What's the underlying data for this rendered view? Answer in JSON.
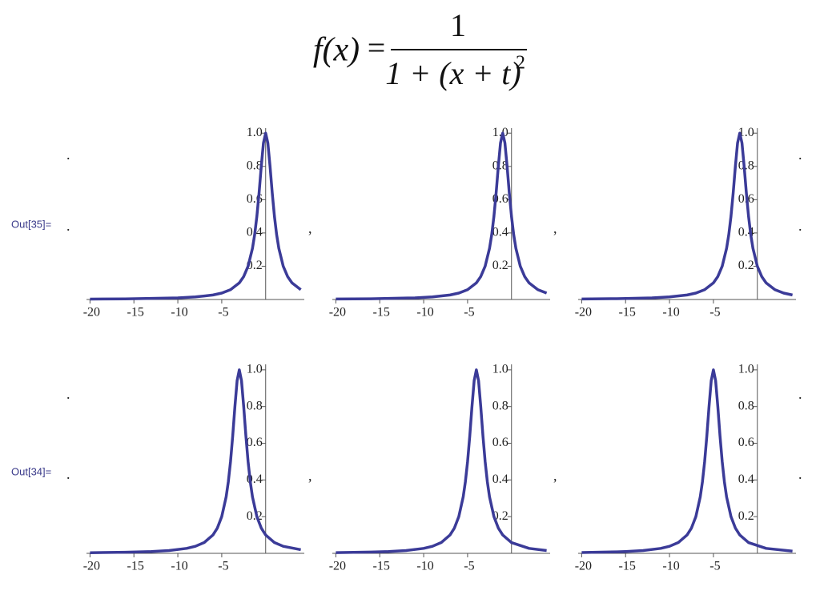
{
  "formula": {
    "lhs": "f(x)",
    "equals": "=",
    "numerator": "1",
    "denominator": "1 + (x + t)",
    "exponent": "2"
  },
  "outputs": [
    {
      "label": "Out[35]="
    },
    {
      "label": "Out[34]="
    }
  ],
  "separator": ",",
  "dot": ".",
  "chart_data": [
    {
      "type": "line",
      "color": "#3b3b98",
      "xlim": [
        -20.4,
        4.4
      ],
      "ylim": [
        0,
        1.03
      ],
      "xticks": [
        -20,
        -15,
        -10,
        -5
      ],
      "yticks": [
        0.2,
        0.4,
        0.6,
        0.8,
        {
          "value": 1,
          "label": "1.0"
        }
      ],
      "x": [
        -20,
        -16,
        -10,
        -8,
        -6,
        -5,
        -4,
        -3,
        -2.5,
        -2,
        -1.5,
        -1.25,
        -1,
        -0.75,
        -0.5,
        -0.25,
        0,
        0.25,
        0.5,
        0.75,
        1,
        1.25,
        1.5,
        2,
        2.5,
        3,
        4
      ],
      "values": [
        0.0025,
        0.0039,
        0.0099,
        0.0154,
        0.027,
        0.0385,
        0.0588,
        0.1,
        0.1379,
        0.2,
        0.3077,
        0.3902,
        0.5,
        0.64,
        0.8,
        0.9412,
        1,
        0.9412,
        0.8,
        0.64,
        0.5,
        0.3902,
        0.3077,
        0.2,
        0.1379,
        0.1,
        0.0588
      ]
    },
    {
      "type": "line",
      "color": "#3b3b98",
      "xlim": [
        -20.4,
        4.4
      ],
      "ylim": [
        0,
        1.03
      ],
      "xticks": [
        -20,
        -15,
        -10,
        -5
      ],
      "yticks": [
        0.2,
        0.4,
        0.6,
        0.8,
        {
          "value": 1,
          "label": "1.0"
        }
      ],
      "x": [
        -20,
        -16,
        -11,
        -9,
        -7,
        -6,
        -5,
        -4,
        -3.5,
        -3,
        -2.5,
        -2.25,
        -2,
        -1.75,
        -1.5,
        -1.25,
        -1,
        -0.75,
        -0.5,
        -0.25,
        0,
        0.25,
        0.5,
        1,
        1.5,
        2,
        3,
        4
      ],
      "values": [
        0.0028,
        0.0044,
        0.0099,
        0.0154,
        0.027,
        0.0385,
        0.0588,
        0.1,
        0.1379,
        0.2,
        0.3077,
        0.3902,
        0.5,
        0.64,
        0.8,
        0.9412,
        1,
        0.9412,
        0.8,
        0.64,
        0.5,
        0.3902,
        0.3077,
        0.2,
        0.1379,
        0.1,
        0.0588,
        0.0385
      ]
    },
    {
      "type": "line",
      "color": "#3b3b98",
      "xlim": [
        -20.4,
        4.4
      ],
      "ylim": [
        0,
        1.03
      ],
      "xticks": [
        -20,
        -15,
        -10,
        -5
      ],
      "yticks": [
        0.2,
        0.4,
        0.6,
        0.8,
        {
          "value": 1,
          "label": "1.0"
        }
      ],
      "x": [
        -20,
        -16,
        -12,
        -10,
        -8,
        -7,
        -6,
        -5,
        -4.5,
        -4,
        -3.5,
        -3.25,
        -3,
        -2.75,
        -2.5,
        -2.25,
        -2,
        -1.75,
        -1.5,
        -1.25,
        -1,
        -0.75,
        -0.5,
        0,
        0.5,
        1,
        2,
        3,
        4
      ],
      "values": [
        0.0031,
        0.0051,
        0.0099,
        0.0154,
        0.027,
        0.0385,
        0.0588,
        0.1,
        0.1379,
        0.2,
        0.3077,
        0.3902,
        0.5,
        0.64,
        0.8,
        0.9412,
        1,
        0.9412,
        0.8,
        0.64,
        0.5,
        0.3902,
        0.3077,
        0.2,
        0.1379,
        0.1,
        0.0588,
        0.0385,
        0.027
      ]
    },
    {
      "type": "line",
      "color": "#3b3b98",
      "xlim": [
        -20.4,
        4.4
      ],
      "ylim": [
        0,
        1.03
      ],
      "xticks": [
        -20,
        -15,
        -10,
        -5
      ],
      "yticks": [
        0.2,
        0.4,
        0.6,
        0.8,
        {
          "value": 1,
          "label": "1.0"
        }
      ],
      "x": [
        -20,
        -16,
        -13,
        -11,
        -9,
        -8,
        -7,
        -6,
        -5.5,
        -5,
        -4.5,
        -4.25,
        -4,
        -3.75,
        -3.5,
        -3.25,
        -3,
        -2.75,
        -2.5,
        -2.25,
        -2,
        -1.75,
        -1.5,
        -1,
        -0.5,
        0,
        1,
        2,
        4
      ],
      "values": [
        0.0034,
        0.0059,
        0.0099,
        0.0154,
        0.027,
        0.0385,
        0.0588,
        0.1,
        0.1379,
        0.2,
        0.3077,
        0.3902,
        0.5,
        0.64,
        0.8,
        0.9412,
        1,
        0.9412,
        0.8,
        0.64,
        0.5,
        0.3902,
        0.3077,
        0.2,
        0.1379,
        0.1,
        0.0588,
        0.0385,
        0.02
      ]
    },
    {
      "type": "line",
      "color": "#3b3b98",
      "xlim": [
        -20.4,
        4.4
      ],
      "ylim": [
        0,
        1.03
      ],
      "xticks": [
        -20,
        -15,
        -10,
        -5
      ],
      "yticks": [
        0.2,
        0.4,
        0.6,
        0.8,
        {
          "value": 1,
          "label": "1.0"
        }
      ],
      "x": [
        -20,
        -16,
        -14,
        -12,
        -10,
        -9,
        -8,
        -7,
        -6.5,
        -6,
        -5.5,
        -5.25,
        -5,
        -4.75,
        -4.5,
        -4.25,
        -4,
        -3.75,
        -3.5,
        -3.25,
        -3,
        -2.75,
        -2.5,
        -2,
        -1.5,
        -1,
        0,
        2,
        4
      ],
      "values": [
        0.0039,
        0.0069,
        0.0099,
        0.0154,
        0.027,
        0.0385,
        0.0588,
        0.1,
        0.1379,
        0.2,
        0.3077,
        0.3902,
        0.5,
        0.64,
        0.8,
        0.9412,
        1,
        0.9412,
        0.8,
        0.64,
        0.5,
        0.3902,
        0.3077,
        0.2,
        0.1379,
        0.1,
        0.0588,
        0.027,
        0.0154
      ]
    },
    {
      "type": "line",
      "color": "#3b3b98",
      "xlim": [
        -20.4,
        4.4
      ],
      "ylim": [
        0,
        1.03
      ],
      "xticks": [
        -20,
        -15,
        -10,
        -5
      ],
      "yticks": [
        0.2,
        0.4,
        0.6,
        0.8,
        {
          "value": 1,
          "label": "1.0"
        }
      ],
      "x": [
        -20,
        -16,
        -15,
        -13,
        -11,
        -10,
        -9,
        -8,
        -7.5,
        -7,
        -6.5,
        -6.25,
        -6,
        -5.75,
        -5.5,
        -5.25,
        -5,
        -4.75,
        -4.5,
        -4.25,
        -4,
        -3.75,
        -3.5,
        -3,
        -2.5,
        -2,
        -1,
        1,
        4
      ],
      "values": [
        0.0044,
        0.0082,
        0.0099,
        0.0154,
        0.027,
        0.0385,
        0.0588,
        0.1,
        0.1379,
        0.2,
        0.3077,
        0.3902,
        0.5,
        0.64,
        0.8,
        0.9412,
        1,
        0.9412,
        0.8,
        0.64,
        0.5,
        0.3902,
        0.3077,
        0.2,
        0.1379,
        0.1,
        0.0588,
        0.027,
        0.0122
      ]
    }
  ]
}
